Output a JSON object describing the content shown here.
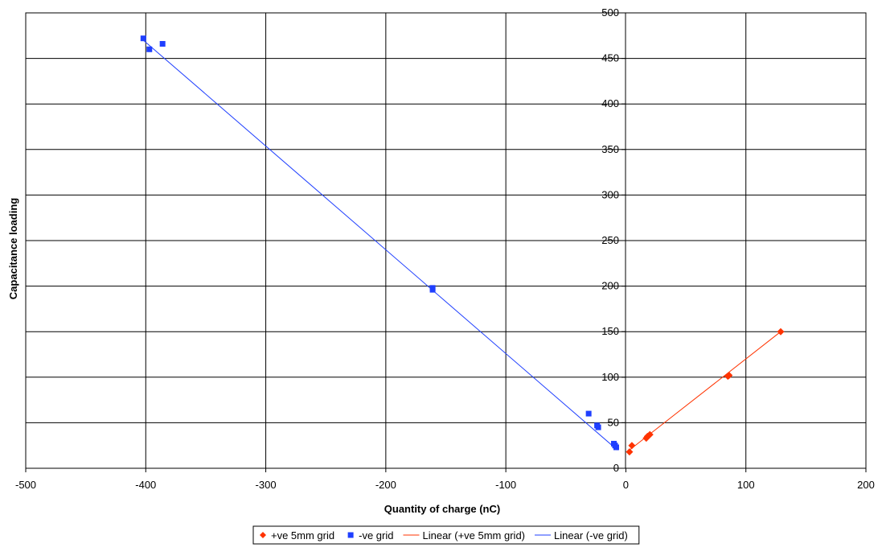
{
  "chart_data": {
    "type": "scatter",
    "title": "",
    "xlabel": "Quantity of charge (nC)",
    "ylabel": "Capacitance loading",
    "xlim": [
      -500,
      200
    ],
    "ylim": [
      0,
      500
    ],
    "x_ticks": [
      -500,
      -400,
      -300,
      -200,
      -100,
      0,
      100,
      200
    ],
    "y_ticks": [
      0,
      50,
      100,
      150,
      200,
      250,
      300,
      350,
      400,
      450,
      500
    ],
    "x_tick_labels": [
      "-500",
      "-400",
      "-300",
      "-200",
      "-100",
      "0",
      "100",
      "200"
    ],
    "y_tick_labels": [
      "0",
      "50",
      "100",
      "150",
      "200",
      "250",
      "300",
      "350",
      "400",
      "450",
      "500"
    ],
    "grid": true,
    "legend_position": "bottom",
    "series": [
      {
        "name": "+ve 5mm grid",
        "kind": "scatter",
        "marker": "diamond",
        "color": "#ff3300",
        "x": [
          3,
          5,
          17,
          18,
          20,
          85,
          86,
          129
        ],
        "y": [
          18,
          25,
          33,
          35,
          37,
          101,
          102,
          150
        ]
      },
      {
        "name": "-ve grid",
        "kind": "scatter",
        "marker": "square",
        "color": "#1f3fff",
        "x": [
          -402,
          -397,
          -386,
          -161,
          -161,
          -31,
          -24,
          -23,
          -10,
          -9,
          -8
        ],
        "y": [
          472,
          460,
          466,
          198,
          196,
          60,
          47,
          45,
          27,
          25,
          23
        ]
      },
      {
        "name": "Linear (+ve 5mm grid)",
        "kind": "line",
        "color": "#ff3300",
        "x": [
          2,
          129
        ],
        "y": [
          19,
          150
        ]
      },
      {
        "name": "Linear (-ve grid)",
        "kind": "line",
        "color": "#1f3fff",
        "x": [
          -402,
          -7
        ],
        "y": [
          470,
          20
        ]
      }
    ]
  }
}
